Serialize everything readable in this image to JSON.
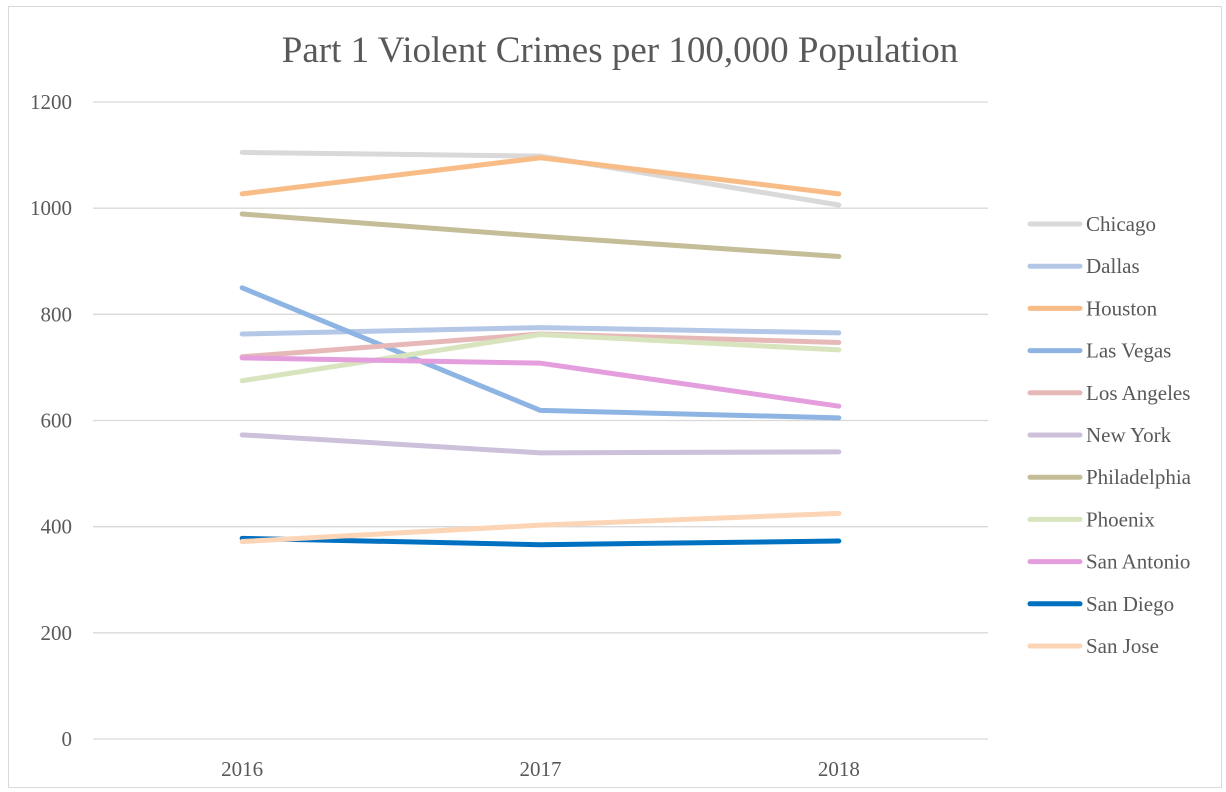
{
  "chart_data": {
    "type": "line",
    "title": "Part 1 Violent Crimes per 100,000 Population",
    "xlabel": "",
    "ylabel": "",
    "categories": [
      "2016",
      "2017",
      "2018"
    ],
    "ylim": [
      0,
      1200
    ],
    "yticks": [
      0,
      200,
      400,
      600,
      800,
      1000,
      1200
    ],
    "grid": true,
    "legend_position": "right",
    "series": [
      {
        "name": "Chicago",
        "color": "#d9d9d9",
        "values": [
          1105,
          1098,
          1006
        ]
      },
      {
        "name": "Dallas",
        "color": "#b4c7e7",
        "values": [
          763,
          775,
          765
        ]
      },
      {
        "name": "Houston",
        "color": "#f8bc87",
        "values": [
          1027,
          1095,
          1027
        ]
      },
      {
        "name": "Las Vegas",
        "color": "#8eb4e3",
        "values": [
          850,
          619,
          605
        ]
      },
      {
        "name": "Los Angeles",
        "color": "#e6b9b8",
        "values": [
          720,
          763,
          747
        ]
      },
      {
        "name": "New York",
        "color": "#ccc0da",
        "values": [
          573,
          539,
          541
        ]
      },
      {
        "name": "Philadelphia",
        "color": "#c4bd97",
        "values": [
          989,
          947,
          909
        ]
      },
      {
        "name": "Phoenix",
        "color": "#d7e4bd",
        "values": [
          675,
          762,
          733
        ]
      },
      {
        "name": "San Antonio",
        "color": "#e59edd",
        "values": [
          718,
          708,
          627
        ]
      },
      {
        "name": "San Diego",
        "color": "#0070c0",
        "values": [
          378,
          366,
          373
        ]
      },
      {
        "name": "San Jose",
        "color": "#fbd5b5",
        "values": [
          372,
          403,
          425
        ]
      }
    ]
  }
}
